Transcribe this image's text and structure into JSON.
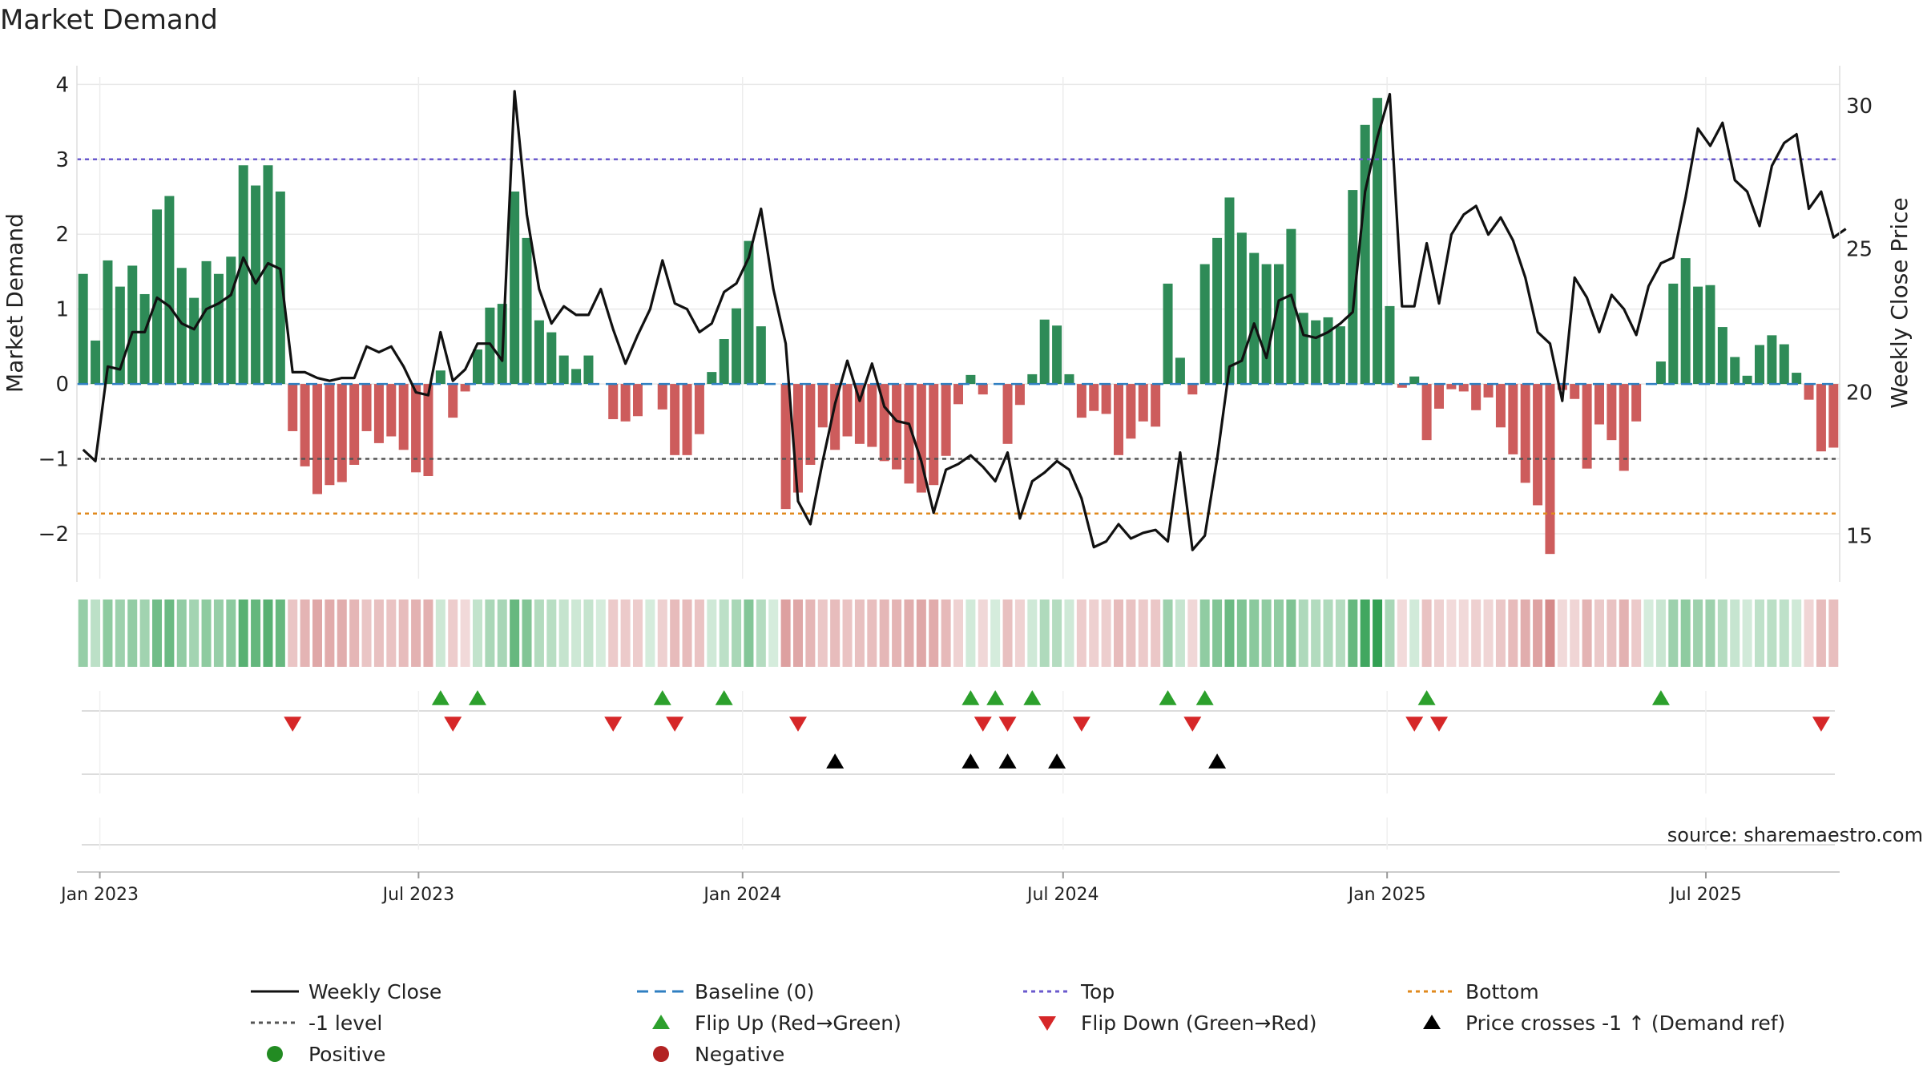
{
  "chart_data": {
    "type": "bar",
    "title": "Market Demand",
    "ylabel": "Market Demand",
    "y2label": "Weekly Close Price",
    "source": "source: sharemaestro.com",
    "x_start": "2022-12-19",
    "x_end": "2025-09-15",
    "ylim": [
      -2.6,
      4.1
    ],
    "yticks": [
      4,
      3,
      2,
      1,
      0,
      -1,
      -2
    ],
    "ytick_labels": [
      "4",
      "3",
      "2",
      "1",
      "0",
      "−1",
      "−2"
    ],
    "y2lim": [
      13.5,
      31.0
    ],
    "y2ticks": [
      30,
      25,
      20,
      15
    ],
    "y2tick_labels": [
      "30",
      "25",
      "20",
      "15"
    ],
    "levels": {
      "top": 3.0,
      "bottom": -1.73,
      "minus_one": -1.0,
      "baseline": 0
    },
    "xticks": [
      {
        "date": "2023-01-01",
        "label": "Jan 2023"
      },
      {
        "date": "2023-07-01",
        "label": "Jul 2023"
      },
      {
        "date": "2024-01-01",
        "label": "Jan 2024"
      },
      {
        "date": "2024-07-01",
        "label": "Jul 2024"
      },
      {
        "date": "2025-01-01",
        "label": "Jan 2025"
      },
      {
        "date": "2025-07-01",
        "label": "Jul 2025"
      }
    ],
    "demand": [
      1.47,
      0.58,
      1.65,
      1.3,
      1.58,
      1.2,
      2.33,
      2.51,
      1.55,
      1.15,
      1.64,
      1.47,
      1.7,
      2.92,
      2.65,
      2.92,
      2.57,
      -0.63,
      -1.1,
      -1.47,
      -1.35,
      -1.31,
      -1.08,
      -0.63,
      -0.79,
      -0.7,
      -0.88,
      -1.18,
      -1.23,
      0.18,
      -0.45,
      -0.1,
      0.46,
      1.02,
      1.07,
      2.57,
      1.95,
      0.85,
      0.69,
      0.38,
      0.2,
      0.38,
      0.0,
      -0.47,
      -0.5,
      -0.43,
      0.0,
      -0.34,
      -0.95,
      -0.95,
      -0.67,
      0.16,
      0.6,
      1.01,
      1.91,
      0.77,
      0.0,
      -1.67,
      -1.45,
      -1.08,
      -0.58,
      -0.88,
      -0.7,
      -0.8,
      -0.84,
      -1.03,
      -1.14,
      -1.33,
      -1.45,
      -1.35,
      -0.96,
      -0.27,
      0.12,
      -0.14,
      0.0,
      -0.8,
      -0.28,
      0.13,
      0.86,
      0.78,
      0.13,
      -0.45,
      -0.36,
      -0.4,
      -0.95,
      -0.73,
      -0.5,
      -0.57,
      1.34,
      0.35,
      -0.14,
      1.6,
      1.95,
      2.49,
      2.02,
      1.75,
      1.6,
      1.6,
      2.07,
      0.95,
      0.85,
      0.89,
      0.77,
      2.59,
      3.46,
      3.82,
      1.04,
      -0.05,
      0.1,
      -0.75,
      -0.33,
      -0.07,
      -0.1,
      -0.35,
      -0.18,
      -0.58,
      -0.94,
      -1.32,
      -1.62,
      -2.27,
      -0.08,
      -0.2,
      -1.13,
      -0.54,
      -0.75,
      -1.16,
      -0.5,
      0.0,
      0.3,
      1.34,
      1.68,
      1.3,
      1.32,
      0.76,
      0.36,
      0.11,
      0.52,
      0.65,
      0.53,
      0.15,
      -0.21,
      -0.9,
      -0.85
    ],
    "price": [
      18.0,
      17.6,
      20.9,
      20.8,
      22.1,
      22.1,
      23.3,
      23.0,
      22.4,
      22.2,
      22.9,
      23.1,
      23.4,
      24.7,
      23.8,
      24.5,
      24.3,
      20.7,
      20.7,
      20.5,
      20.4,
      20.5,
      20.5,
      21.6,
      21.4,
      21.6,
      20.9,
      20.0,
      19.9,
      22.1,
      20.4,
      20.8,
      21.7,
      21.7,
      21.1,
      30.5,
      26.2,
      23.6,
      22.4,
      23.0,
      22.7,
      22.7,
      23.6,
      22.2,
      21.0,
      22.0,
      22.9,
      24.6,
      23.1,
      22.9,
      22.1,
      22.4,
      23.5,
      23.8,
      24.7,
      26.4,
      23.6,
      21.7,
      16.2,
      15.4,
      17.6,
      19.6,
      21.1,
      19.7,
      21.0,
      19.5,
      19.0,
      18.9,
      17.6,
      15.8,
      17.3,
      17.5,
      17.8,
      17.4,
      16.9,
      17.9,
      15.6,
      16.9,
      17.2,
      17.6,
      17.3,
      16.3,
      14.6,
      14.8,
      15.4,
      14.9,
      15.1,
      15.2,
      14.8,
      17.9,
      14.5,
      15.0,
      17.7,
      20.9,
      21.1,
      22.4,
      21.2,
      23.2,
      23.4,
      22.0,
      21.9,
      22.1,
      22.4,
      22.8,
      27.0,
      28.9,
      30.4,
      23.0,
      23.0,
      25.2,
      23.1,
      25.5,
      26.2,
      26.5,
      25.5,
      26.1,
      25.3,
      24.0,
      22.1,
      21.7,
      19.7,
      24.0,
      23.3,
      22.1,
      23.4,
      22.9,
      22.0,
      23.7,
      24.5,
      24.7,
      26.8,
      29.2,
      28.6,
      29.4,
      27.4,
      27.0,
      25.8,
      27.9,
      28.7,
      29.0,
      26.4,
      27.0,
      25.4,
      25.7
    ],
    "flip_up_idx": [
      29,
      32,
      47,
      52,
      72,
      74,
      77,
      88,
      91,
      109,
      128
    ],
    "flip_down_idx": [
      17,
      30,
      43,
      48,
      58,
      73,
      75,
      81,
      90,
      108,
      110,
      141
    ],
    "price_cross_idx": [
      61,
      72,
      75,
      79,
      92
    ],
    "legend": [
      {
        "label": "Weekly Close",
        "kind": "line-solid",
        "color": "#111111"
      },
      {
        "label": "Baseline (0)",
        "kind": "line-dash",
        "color": "#2f7fc1"
      },
      {
        "label": "Top",
        "kind": "line-dot",
        "color": "#6a5acd"
      },
      {
        "label": "Bottom",
        "kind": "line-dot",
        "color": "#e08a1e"
      },
      {
        "label": "-1 level",
        "kind": "line-dot",
        "color": "#555555"
      },
      {
        "label": "Flip Up (Red→Green)",
        "kind": "tri-up",
        "color": "#2ca02c"
      },
      {
        "label": "Flip Down (Green→Red)",
        "kind": "tri-down",
        "color": "#d62728"
      },
      {
        "label": "Price crosses -1 ↑ (Demand ref)",
        "kind": "tri-up",
        "color": "#000000"
      },
      {
        "label": "Positive",
        "kind": "dot",
        "color": "#228b22"
      },
      {
        "label": "Negative",
        "kind": "dot",
        "color": "#b22222"
      }
    ],
    "colors": {
      "positive_bar": "#2e8b57",
      "negative_bar": "#cd5c5c",
      "heat_positive": "#2e9e50",
      "heat_negative": "#c05050"
    }
  }
}
